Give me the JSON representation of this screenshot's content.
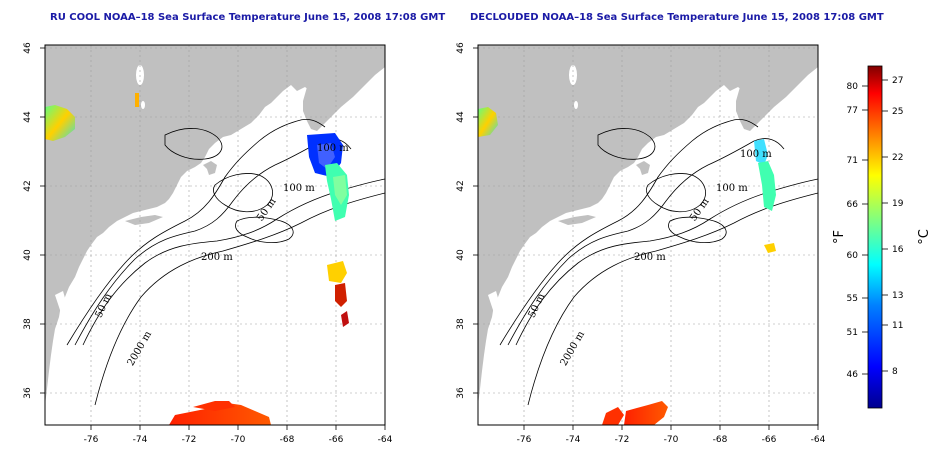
{
  "maps": [
    {
      "title": "RU COOL NOAA–18 Sea Surface Temperature June 15, 2008 17:08 GMT",
      "x_ticks": [
        "-76",
        "-74",
        "-72",
        "-70",
        "-68",
        "-66",
        "-64"
      ],
      "y_ticks": [
        "46",
        "44",
        "42",
        "40",
        "38",
        "36"
      ],
      "contour_labels": [
        "100 m",
        "100 m",
        "50 m",
        "200 m",
        "50 m",
        "2000 m"
      ]
    },
    {
      "title": "DECLOUDED NOAA–18 Sea Surface Temperature June 15, 2008 17:08 GMT",
      "x_ticks": [
        "-76",
        "-74",
        "-72",
        "-70",
        "-68",
        "-66",
        "-64"
      ],
      "y_ticks": [
        "46",
        "44",
        "42",
        "40",
        "38",
        "36"
      ],
      "contour_labels": [
        "100 m",
        "100 m",
        "50 m",
        "200 m",
        "50 m",
        "2000 m"
      ]
    }
  ],
  "colorbar": {
    "fahrenheit_ticks": [
      "80",
      "77",
      "71",
      "66",
      "60",
      "55",
      "51",
      "46"
    ],
    "celsius_ticks": [
      "27",
      "25",
      "22",
      "19",
      "16",
      "13",
      "11",
      "8"
    ],
    "left_unit": "°F",
    "right_unit": "°C"
  },
  "colors": {
    "land": "#c0c0c0",
    "ocean": "#ffffff",
    "title": "#1a1aa6",
    "scale": [
      "#00008f",
      "#0000ff",
      "#0080ff",
      "#00ffff",
      "#80ff80",
      "#ffff00",
      "#ff8000",
      "#ff0000",
      "#800000"
    ]
  }
}
